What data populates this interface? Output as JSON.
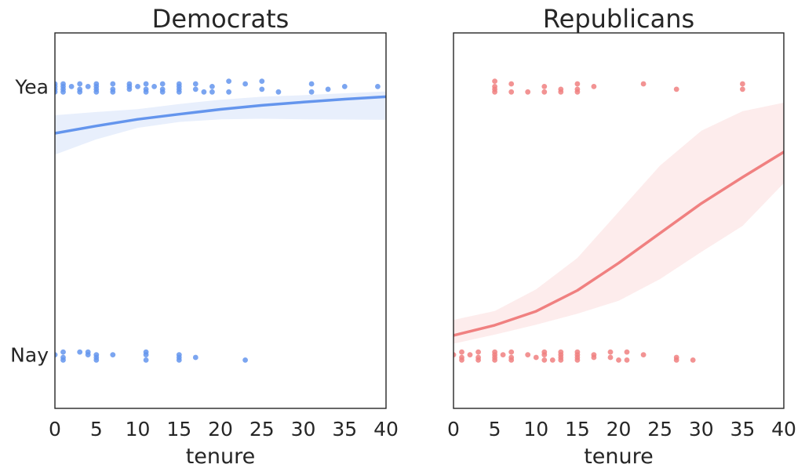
{
  "chart_data": [
    {
      "type": "scatter",
      "title": "Democrats",
      "xlabel": "tenure",
      "ylabel": "",
      "xlim": [
        0,
        40
      ],
      "ylim": [
        -0.2,
        1.2
      ],
      "xticks": [
        0,
        5,
        10,
        15,
        20,
        25,
        30,
        35,
        40
      ],
      "yticks": [
        {
          "value": 0,
          "label": "Nay"
        },
        {
          "value": 1,
          "label": "Yea"
        }
      ],
      "color": "#6495ED",
      "points_yea": [
        [
          0,
          1.0
        ],
        [
          0,
          0.98
        ],
        [
          0,
          1.01
        ],
        [
          0,
          0.99
        ],
        [
          1,
          1.01
        ],
        [
          1,
          0.98
        ],
        [
          1,
          1.0
        ],
        [
          1,
          0.99
        ],
        [
          2,
          1.0
        ],
        [
          3,
          1.01
        ],
        [
          3,
          0.98
        ],
        [
          3,
          0.99
        ],
        [
          4,
          1.0
        ],
        [
          5,
          1.01
        ],
        [
          5,
          0.98
        ],
        [
          5,
          0.99
        ],
        [
          5,
          1.0
        ],
        [
          7,
          1.01
        ],
        [
          7,
          0.98
        ],
        [
          7,
          0.99
        ],
        [
          9,
          1.01
        ],
        [
          9,
          0.99
        ],
        [
          9,
          1.0
        ],
        [
          10,
          1.0
        ],
        [
          11,
          1.01
        ],
        [
          11,
          0.98
        ],
        [
          11,
          0.99
        ],
        [
          12,
          1.0
        ],
        [
          13,
          1.01
        ],
        [
          13,
          0.98
        ],
        [
          13,
          0.99
        ],
        [
          15,
          1.01
        ],
        [
          15,
          0.98
        ],
        [
          15,
          0.99
        ],
        [
          15,
          1.0
        ],
        [
          17,
          1.01
        ],
        [
          17,
          0.99
        ],
        [
          18,
          0.98
        ],
        [
          19,
          1.0
        ],
        [
          19,
          0.98
        ],
        [
          21,
          1.02
        ],
        [
          21,
          0.98
        ],
        [
          23,
          1.01
        ],
        [
          25,
          1.02
        ],
        [
          25,
          0.99
        ],
        [
          27,
          0.98
        ],
        [
          31,
          1.01
        ],
        [
          31,
          0.98
        ],
        [
          33,
          0.99
        ],
        [
          35,
          1.0
        ],
        [
          39,
          1.0
        ]
      ],
      "points_nay": [
        [
          0,
          0.0
        ],
        [
          1,
          0.01
        ],
        [
          1,
          -0.01
        ],
        [
          1,
          -0.02
        ],
        [
          3,
          0.01
        ],
        [
          4,
          0.01
        ],
        [
          4,
          0.0
        ],
        [
          5,
          0.0
        ],
        [
          5,
          -0.01
        ],
        [
          5,
          -0.02
        ],
        [
          7,
          0.0
        ],
        [
          11,
          0.01
        ],
        [
          11,
          -0.02
        ],
        [
          11,
          0.0
        ],
        [
          15,
          -0.01
        ],
        [
          15,
          -0.02
        ],
        [
          15,
          0.0
        ],
        [
          17,
          -0.01
        ],
        [
          23,
          -0.02
        ]
      ],
      "fit_x": [
        0,
        5,
        10,
        15,
        20,
        25,
        30,
        35,
        40
      ],
      "fit_y": [
        0.826,
        0.853,
        0.878,
        0.897,
        0.915,
        0.93,
        0.942,
        0.953,
        0.962
      ],
      "ci_lower": [
        0.746,
        0.803,
        0.846,
        0.868,
        0.878,
        0.88,
        0.878,
        0.877,
        0.876
      ],
      "ci_upper": [
        0.893,
        0.905,
        0.916,
        0.935,
        0.951,
        0.962,
        0.968,
        0.975,
        0.982
      ]
    },
    {
      "type": "scatter",
      "title": "Republicans",
      "xlabel": "tenure",
      "ylabel": "",
      "xlim": [
        0,
        40
      ],
      "ylim": [
        -0.2,
        1.2
      ],
      "xticks": [
        0,
        5,
        10,
        15,
        20,
        25,
        30,
        35,
        40
      ],
      "yticks": [],
      "color": "#F08080",
      "points_yea": [
        [
          5,
          1.02
        ],
        [
          5,
          0.99
        ],
        [
          5,
          1.0
        ],
        [
          5,
          0.98
        ],
        [
          7,
          1.01
        ],
        [
          7,
          0.98
        ],
        [
          9,
          0.98
        ],
        [
          11,
          1.0
        ],
        [
          11,
          0.98
        ],
        [
          13,
          0.99
        ],
        [
          13,
          0.98
        ],
        [
          15,
          1.01
        ],
        [
          15,
          0.98
        ],
        [
          15,
          0.99
        ],
        [
          17,
          1.0
        ],
        [
          23,
          1.01
        ],
        [
          27,
          0.99
        ],
        [
          35,
          1.01
        ],
        [
          35,
          0.99
        ]
      ],
      "points_nay": [
        [
          0,
          0.0
        ],
        [
          1,
          0.01
        ],
        [
          1,
          -0.01
        ],
        [
          1,
          -0.02
        ],
        [
          2,
          0.0
        ],
        [
          3,
          0.01
        ],
        [
          3,
          -0.01
        ],
        [
          3,
          -0.02
        ],
        [
          5,
          0.01
        ],
        [
          5,
          0.0
        ],
        [
          5,
          -0.01
        ],
        [
          5,
          -0.02
        ],
        [
          6,
          0.0
        ],
        [
          7,
          0.01
        ],
        [
          7,
          -0.01
        ],
        [
          7,
          -0.02
        ],
        [
          9,
          0.0
        ],
        [
          10,
          -0.01
        ],
        [
          11,
          0.01
        ],
        [
          11,
          0.0
        ],
        [
          11,
          -0.02
        ],
        [
          12,
          -0.02
        ],
        [
          13,
          0.01
        ],
        [
          13,
          0.0
        ],
        [
          13,
          -0.01
        ],
        [
          13,
          -0.02
        ],
        [
          15,
          0.01
        ],
        [
          15,
          0.0
        ],
        [
          15,
          -0.01
        ],
        [
          15,
          -0.02
        ],
        [
          17,
          0.0
        ],
        [
          17,
          -0.01
        ],
        [
          19,
          0.01
        ],
        [
          19,
          -0.01
        ],
        [
          20,
          -0.02
        ],
        [
          21,
          0.01
        ],
        [
          21,
          -0.02
        ],
        [
          23,
          0.0
        ],
        [
          27,
          -0.01
        ],
        [
          27,
          -0.02
        ],
        [
          29,
          -0.02
        ]
      ],
      "fit_x": [
        0,
        5,
        10,
        15,
        20,
        25,
        30,
        35,
        40
      ],
      "fit_y": [
        0.072,
        0.11,
        0.162,
        0.24,
        0.342,
        0.453,
        0.564,
        0.662,
        0.756
      ],
      "ci_lower": [
        0.041,
        0.075,
        0.112,
        0.153,
        0.201,
        0.282,
        0.383,
        0.48,
        0.64
      ],
      "ci_upper": [
        0.13,
        0.163,
        0.244,
        0.361,
        0.533,
        0.705,
        0.835,
        0.908,
        0.94
      ]
    }
  ]
}
